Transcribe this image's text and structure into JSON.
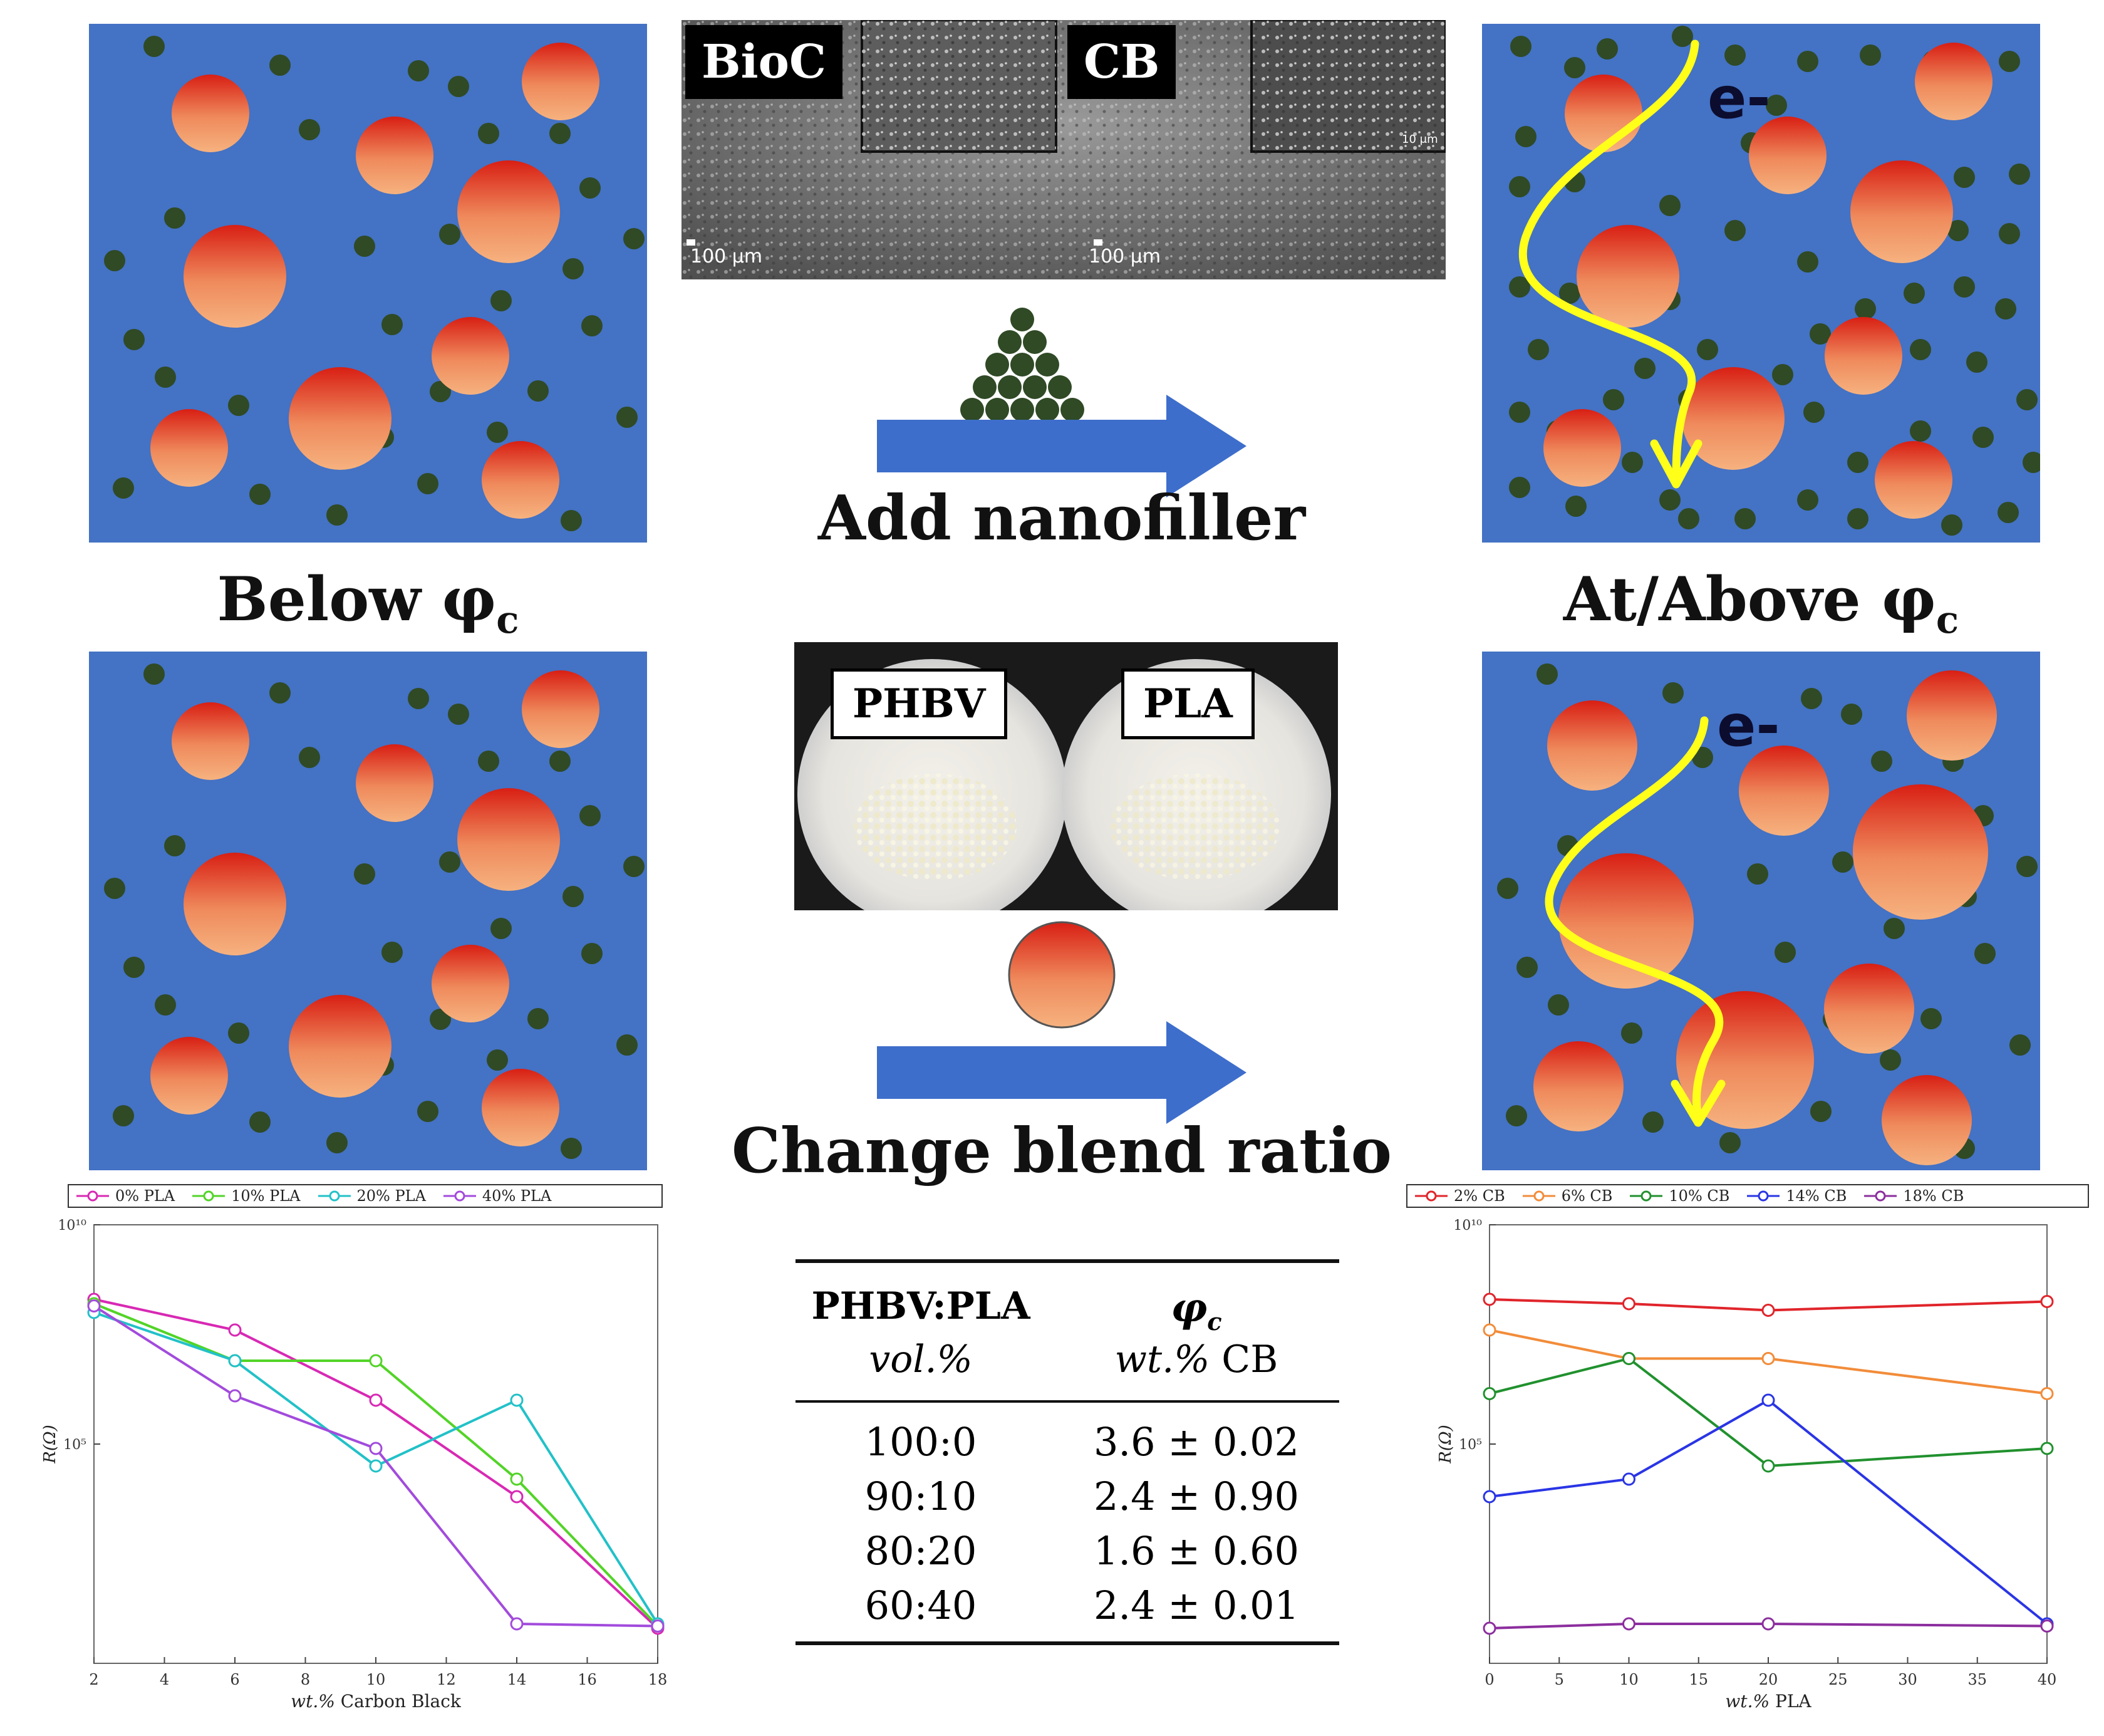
{
  "labels": {
    "below": "Below φ",
    "below_sub": "c",
    "above": "At/Above φ",
    "above_sub": "c",
    "add_nanofiller": "Add nanofiller",
    "change_blend": "Change blend ratio",
    "electron": "e-"
  },
  "sem": {
    "tag_left": "BioC",
    "tag_right": "CB",
    "scale_left": "100 μm",
    "scale_right": "100 μm",
    "inset_scale": "10 μm"
  },
  "blend_photo": {
    "tag_left": "PHBV",
    "tag_right": "PLA"
  },
  "colors": {
    "matrix": "#4472c4",
    "filler": "#2f4a25",
    "particle_top": "#d81f14",
    "particle_bottom": "#f6ad7b",
    "arrow": "#3e6ecb",
    "path": "#ffff1a"
  },
  "phi_table": {
    "header_col1": "PHBV:PLA",
    "header_col1_sub": "vol.%",
    "header_col2": "φ",
    "header_col2_sub_c": "c",
    "header_col2_unit_italic": "wt.%",
    "header_col2_unit": " CB",
    "rows": [
      {
        "ratio": "100:0",
        "phi": "3.6 ± 0.02"
      },
      {
        "ratio": "90:10",
        "phi": "2.4 ± 0.90"
      },
      {
        "ratio": "80:20",
        "phi": "1.6 ± 0.60"
      },
      {
        "ratio": "60:40",
        "phi": "2.4 ± 0.01"
      }
    ]
  },
  "chart_data": [
    {
      "type": "line",
      "xlabel_italic": "wt.%",
      "xlabel": " Carbon Black",
      "ylabel": "R(Ω)",
      "y_scale": "log",
      "xlim": [
        2,
        18
      ],
      "ylim_log10": [
        0,
        10
      ],
      "x_ticks": [
        2,
        4,
        6,
        8,
        10,
        12,
        14,
        16,
        18
      ],
      "y_tick_labels": [
        "10¹⁰",
        "10⁵"
      ],
      "y_tick_values_log10": [
        10,
        5
      ],
      "series": [
        {
          "name": "0% PLA",
          "color": "#d829b4",
          "x": [
            2,
            6,
            10,
            14,
            18
          ],
          "log10_values": [
            8.3,
            7.6,
            6.0,
            3.8,
            0.8
          ]
        },
        {
          "name": "10% PLA",
          "color": "#52d427",
          "x": [
            2,
            6,
            10,
            14,
            18
          ],
          "log10_values": [
            8.2,
            6.9,
            6.9,
            4.2,
            0.85
          ]
        },
        {
          "name": "20% PLA",
          "color": "#22c1c8",
          "x": [
            2,
            6,
            10,
            14,
            18
          ],
          "log10_values": [
            8.0,
            6.9,
            4.5,
            6.0,
            0.9
          ]
        },
        {
          "name": "40% PLA",
          "color": "#a24bdc",
          "x": [
            2,
            6,
            10,
            14,
            18
          ],
          "log10_values": [
            8.15,
            6.1,
            4.9,
            0.9,
            0.85
          ]
        }
      ]
    },
    {
      "type": "line",
      "xlabel_italic": "wt.%",
      "xlabel": " PLA",
      "ylabel": "R(Ω)",
      "y_scale": "log",
      "xlim": [
        0,
        40
      ],
      "ylim_log10": [
        0,
        10
      ],
      "x_ticks": [
        0,
        5,
        10,
        15,
        20,
        25,
        30,
        35,
        40
      ],
      "y_tick_labels": [
        "10¹⁰",
        "10⁵"
      ],
      "y_tick_values_log10": [
        10,
        5
      ],
      "series": [
        {
          "name": "2% CB",
          "color": "#e0252b",
          "x": [
            0,
            10,
            20,
            40
          ],
          "log10_values": [
            8.3,
            8.2,
            8.05,
            8.25
          ]
        },
        {
          "name": "6% CB",
          "color": "#f28c3a",
          "x": [
            0,
            10,
            20,
            40
          ],
          "log10_values": [
            7.6,
            6.95,
            6.95,
            6.15
          ]
        },
        {
          "name": "10% CB",
          "color": "#21912e",
          "x": [
            0,
            10,
            20,
            40
          ],
          "log10_values": [
            6.15,
            6.95,
            4.5,
            4.9
          ]
        },
        {
          "name": "14% CB",
          "color": "#2a35e5",
          "x": [
            0,
            10,
            20,
            40
          ],
          "log10_values": [
            3.8,
            4.2,
            6.0,
            0.9
          ]
        },
        {
          "name": "18% CB",
          "color": "#8c2e9e",
          "x": [
            0,
            10,
            20,
            40
          ],
          "log10_values": [
            0.8,
            0.9,
            0.9,
            0.85
          ]
        }
      ]
    }
  ]
}
